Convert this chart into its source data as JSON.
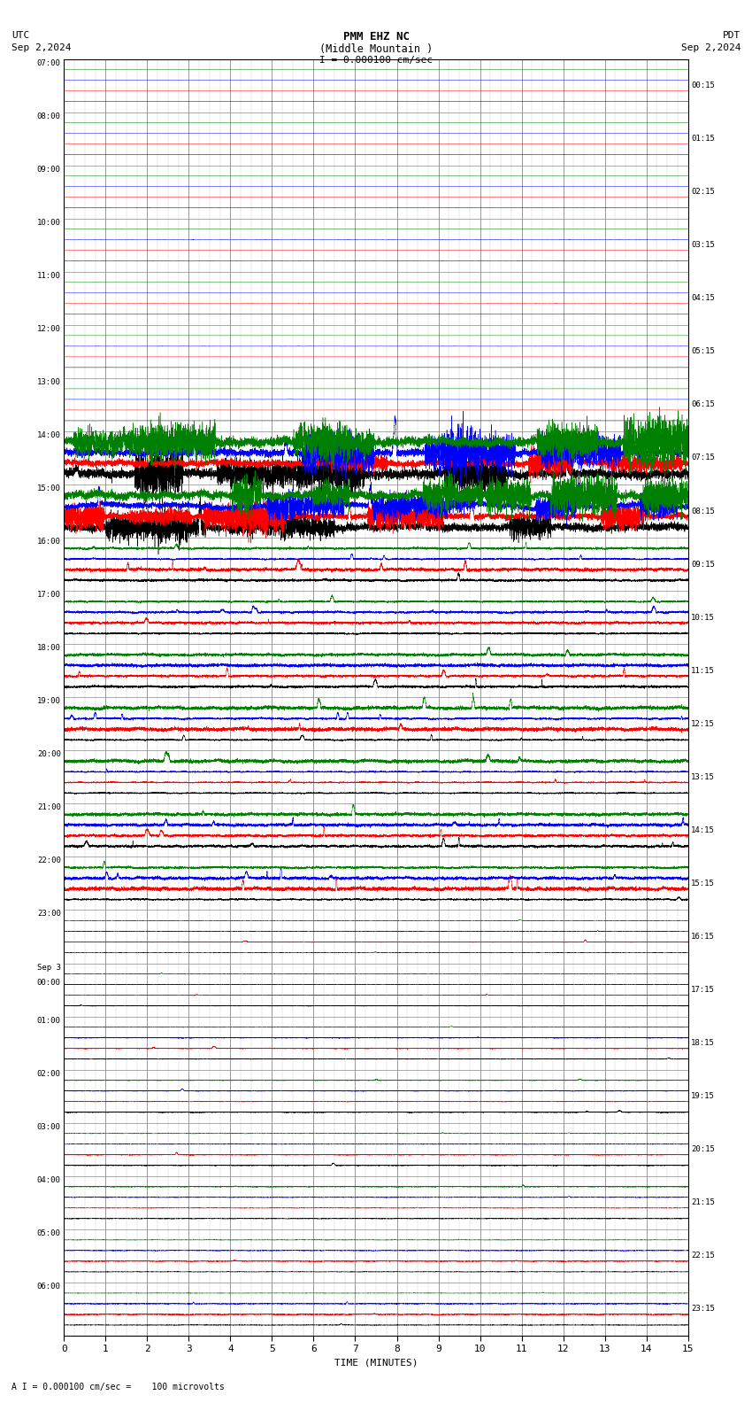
{
  "title_line1": "PMM EHZ NC",
  "title_line2": "(Middle Mountain )",
  "scale_label": "I = 0.000100 cm/sec",
  "bottom_label": "A I = 0.000100 cm/sec =    100 microvolts",
  "label_left_top": "UTC",
  "label_left_date": "Sep 2,2024",
  "label_right_top": "PDT",
  "label_right_date": "Sep 2,2024",
  "xlabel": "TIME (MINUTES)",
  "left_times": [
    "07:00",
    "08:00",
    "09:00",
    "10:00",
    "11:00",
    "12:00",
    "13:00",
    "14:00",
    "15:00",
    "16:00",
    "17:00",
    "18:00",
    "19:00",
    "20:00",
    "21:00",
    "22:00",
    "23:00",
    "Sep 3\n00:00",
    "01:00",
    "02:00",
    "03:00",
    "04:00",
    "05:00",
    "06:00"
  ],
  "right_times": [
    "00:15",
    "01:15",
    "02:15",
    "03:15",
    "04:15",
    "05:15",
    "06:15",
    "07:15",
    "08:15",
    "09:15",
    "10:15",
    "11:15",
    "12:15",
    "13:15",
    "14:15",
    "15:15",
    "16:15",
    "17:15",
    "18:15",
    "19:15",
    "20:15",
    "21:15",
    "22:15",
    "23:15"
  ],
  "n_rows": 24,
  "n_traces_per_row": 4,
  "n_minutes": 15,
  "bg_color": "#ffffff",
  "grid_color_major": "#888888",
  "grid_color_minor": "#cccccc",
  "colors_cycle": [
    "black",
    "red",
    "blue",
    "green"
  ],
  "quiet_rows": [
    0,
    1,
    2,
    3,
    4,
    5,
    6
  ],
  "moderate_rows": [
    16,
    17,
    18,
    19,
    20,
    21,
    22,
    23
  ],
  "active_rows": [
    7,
    8,
    9,
    10,
    11,
    12,
    13,
    14,
    15
  ],
  "very_active_rows": [
    7,
    8
  ],
  "seed": 42
}
